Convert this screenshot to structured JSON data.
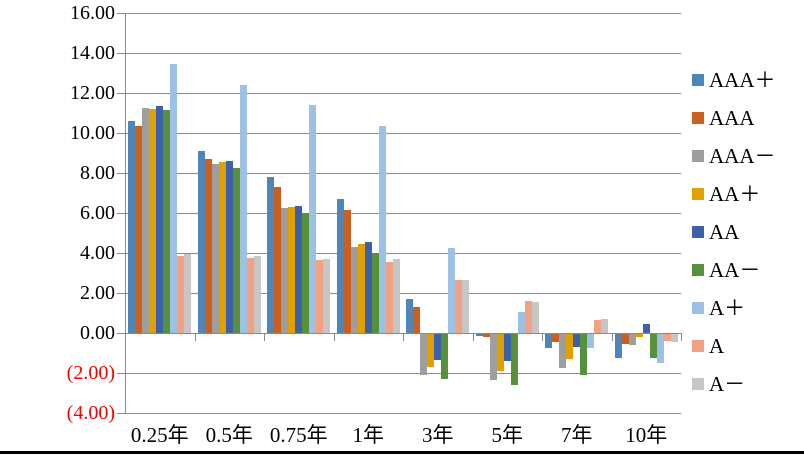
{
  "chart_data": {
    "type": "bar",
    "title": "",
    "xlabel": "",
    "ylabel": "",
    "categories": [
      "0.25年",
      "0.5年",
      "0.75年",
      "1年",
      "3年",
      "5年",
      "7年",
      "10年"
    ],
    "series": [
      {
        "name": "AAA＋",
        "color": "#4E87B7",
        "values": [
          10.6,
          9.1,
          7.8,
          6.7,
          1.7,
          -0.1,
          -0.7,
          -1.2
        ]
      },
      {
        "name": "AAA",
        "color": "#C95F20",
        "values": [
          10.35,
          8.7,
          7.3,
          6.15,
          1.3,
          -0.15,
          -0.4,
          -0.5
        ]
      },
      {
        "name": "AAA－",
        "color": "#9E9E9E",
        "values": [
          11.25,
          8.45,
          6.25,
          4.3,
          -2.05,
          -2.3,
          -1.7,
          -0.55
        ]
      },
      {
        "name": "AA＋",
        "color": "#DFA000",
        "values": [
          11.2,
          8.55,
          6.3,
          4.45,
          -1.65,
          -1.85,
          -1.25,
          -0.15
        ]
      },
      {
        "name": "AA",
        "color": "#3C61A8",
        "values": [
          11.35,
          8.6,
          6.35,
          4.55,
          -1.3,
          -1.35,
          -0.65,
          0.45
        ]
      },
      {
        "name": "AA－",
        "color": "#58913C",
        "values": [
          11.15,
          8.25,
          6.0,
          4.0,
          -2.25,
          -2.55,
          -2.05,
          -1.2
        ]
      },
      {
        "name": "A＋",
        "color": "#9CC1E5",
        "values": [
          13.45,
          12.4,
          11.4,
          10.35,
          4.25,
          1.05,
          -0.7,
          -1.45
        ]
      },
      {
        "name": "A",
        "color": "#F2A182",
        "values": [
          3.85,
          3.75,
          3.65,
          3.55,
          2.65,
          1.6,
          0.65,
          -0.35
        ]
      },
      {
        "name": "A－",
        "color": "#C6C6C6",
        "values": [
          3.95,
          3.85,
          3.7,
          3.7,
          2.65,
          1.55,
          0.7,
          -0.4
        ]
      }
    ],
    "y_axis": {
      "min": -4,
      "max": 16,
      "step": 2,
      "tick_labels": [
        "16.00",
        "14.00",
        "12.00",
        "10.00",
        "8.00",
        "6.00",
        "4.00",
        "2.00",
        "0.00",
        "(2.00)",
        "(4.00)"
      ],
      "negative_label_style": "red-parentheses"
    },
    "grid": true,
    "legend_position": "right"
  },
  "colors": {
    "gridline": "#8A8A8A",
    "axis": "#8A8A8A",
    "label_text": "#000000",
    "negative_label": "#FF0000",
    "bottom_border": "#000000",
    "background": "#FFFFFF"
  }
}
